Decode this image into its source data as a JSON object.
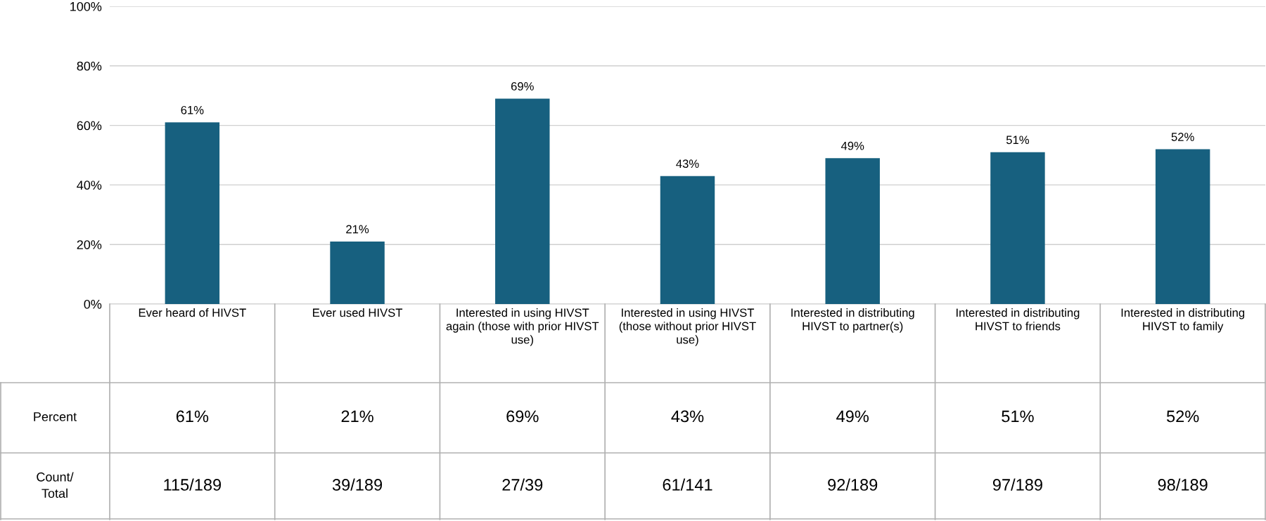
{
  "chart_data": {
    "type": "bar",
    "categories": [
      "Ever heard of HIVST",
      "Ever used HIVST",
      "Interested in using HIVST again (those with prior HIVST use)",
      "Interested in using HIVST (those without prior HIVST use)",
      "Interested in distributing HIVST to partner(s)",
      "Interested in distributing HIVST to friends",
      "Interested in distributing HIVST to family"
    ],
    "values": [
      61,
      21,
      69,
      43,
      49,
      51,
      52
    ],
    "value_labels": [
      "61%",
      "21%",
      "69%",
      "43%",
      "49%",
      "51%",
      "52%"
    ],
    "color": "#17607f",
    "ylim": [
      0,
      100
    ],
    "yticks": [
      {
        "value": 0,
        "label": "0%"
      },
      {
        "value": 20,
        "label": "20%"
      },
      {
        "value": 40,
        "label": "40%"
      },
      {
        "value": 60,
        "label": "60%"
      },
      {
        "value": 80,
        "label": "80%"
      },
      {
        "value": 100,
        "label": "100%"
      }
    ],
    "grid": "y",
    "legend": false,
    "annotations": [
      "Percent",
      "Count/ Total",
      "115/189",
      "39/189",
      "27/39",
      "61/141",
      "92/189",
      "97/189",
      "98/189"
    ]
  }
}
